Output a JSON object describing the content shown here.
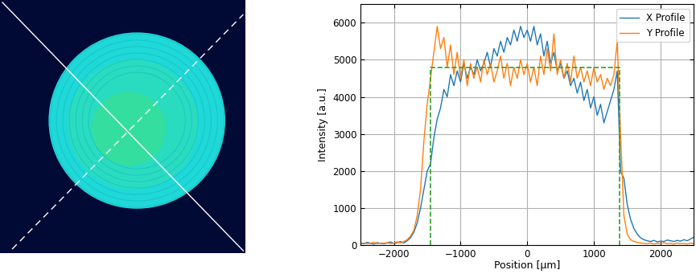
{
  "chart_data": {
    "type": "line",
    "x_label": "Position [μm]",
    "y_label": "Intensity [a.u.]",
    "xlim": [
      -2500,
      2500
    ],
    "ylim": [
      0,
      6500
    ],
    "xticks": [
      {
        "value": -2000,
        "label": "−2000"
      },
      {
        "value": -1000,
        "label": "−1000"
      },
      0,
      1000,
      2000
    ],
    "yticks": [
      0,
      1000,
      2000,
      3000,
      4000,
      5000,
      6000
    ],
    "grid": true,
    "legend": "upper right",
    "x": [
      -2500,
      -2450,
      -2400,
      -2350,
      -2300,
      -2250,
      -2200,
      -2150,
      -2100,
      -2050,
      -2000,
      -1950,
      -1900,
      -1850,
      -1800,
      -1750,
      -1700,
      -1650,
      -1600,
      -1550,
      -1500,
      -1450,
      -1400,
      -1350,
      -1300,
      -1250,
      -1200,
      -1150,
      -1100,
      -1050,
      -1000,
      -950,
      -900,
      -850,
      -800,
      -750,
      -700,
      -650,
      -600,
      -550,
      -500,
      -450,
      -400,
      -350,
      -300,
      -250,
      -200,
      -150,
      -100,
      -50,
      0,
      50,
      100,
      150,
      200,
      250,
      300,
      350,
      400,
      450,
      500,
      550,
      600,
      650,
      700,
      750,
      800,
      850,
      900,
      950,
      1000,
      1050,
      1100,
      1150,
      1200,
      1250,
      1300,
      1350,
      1400,
      1450,
      1500,
      1550,
      1600,
      1650,
      1700,
      1750,
      1800,
      1850,
      1900,
      1950,
      2000,
      2050,
      2100,
      2150,
      2200,
      2250,
      2300,
      2350,
      2400,
      2450,
      2500
    ],
    "series": [
      {
        "name": "X Profile",
        "color": "#1f77b4",
        "line_style": "solid",
        "values": [
          60,
          40,
          80,
          50,
          30,
          70,
          50,
          40,
          60,
          90,
          50,
          70,
          100,
          60,
          120,
          200,
          350,
          600,
          1000,
          1500,
          2000,
          2200,
          2900,
          3400,
          3700,
          4200,
          4000,
          4600,
          4300,
          4700,
          4400,
          4900,
          4500,
          4800,
          4600,
          5000,
          4700,
          4900,
          5200,
          4800,
          5300,
          5100,
          5500,
          5200,
          5600,
          5400,
          5800,
          5500,
          5900,
          5600,
          5800,
          5500,
          5900,
          5400,
          5700,
          5100,
          5500,
          4900,
          5200,
          4700,
          4900,
          4500,
          4700,
          4300,
          4500,
          4100,
          4400,
          3900,
          4200,
          3700,
          4000,
          3500,
          3800,
          3300,
          3600,
          3900,
          4200,
          4700,
          2000,
          1800,
          1100,
          700,
          450,
          300,
          200,
          150,
          120,
          100,
          130,
          90,
          110,
          100,
          140,
          120,
          100,
          130,
          110,
          150,
          120,
          170,
          220
        ]
      },
      {
        "name": "Y Profile",
        "color": "#ff7f0e",
        "line_style": "solid",
        "values": [
          30,
          60,
          40,
          50,
          80,
          40,
          60,
          50,
          70,
          40,
          60,
          90,
          60,
          100,
          150,
          250,
          400,
          800,
          1500,
          2800,
          3800,
          4500,
          5200,
          5900,
          5300,
          5600,
          4800,
          5400,
          4600,
          5200,
          4500,
          5000,
          4300,
          4900,
          4500,
          4800,
          4400,
          5000,
          4600,
          4900,
          4400,
          4700,
          5100,
          4500,
          4900,
          4300,
          4800,
          4500,
          5000,
          4600,
          4900,
          4400,
          4800,
          4300,
          5100,
          4600,
          5300,
          4700,
          5700,
          4600,
          5000,
          4500,
          4900,
          4400,
          5100,
          4500,
          4800,
          4400,
          4700,
          4300,
          4800,
          4400,
          4600,
          4200,
          4500,
          4300,
          4600,
          5500,
          3000,
          800,
          300,
          150,
          100,
          80,
          60,
          50,
          40,
          60,
          30,
          50,
          40,
          70,
          40,
          50,
          30,
          60,
          40,
          50,
          30,
          60,
          40
        ]
      }
    ],
    "top_hat": {
      "x": [
        -1450,
        -1450,
        1380,
        1380
      ],
      "values": [
        0,
        4800,
        4800,
        0
      ],
      "color": "#2ca02c",
      "line_style": "dashed"
    }
  }
}
